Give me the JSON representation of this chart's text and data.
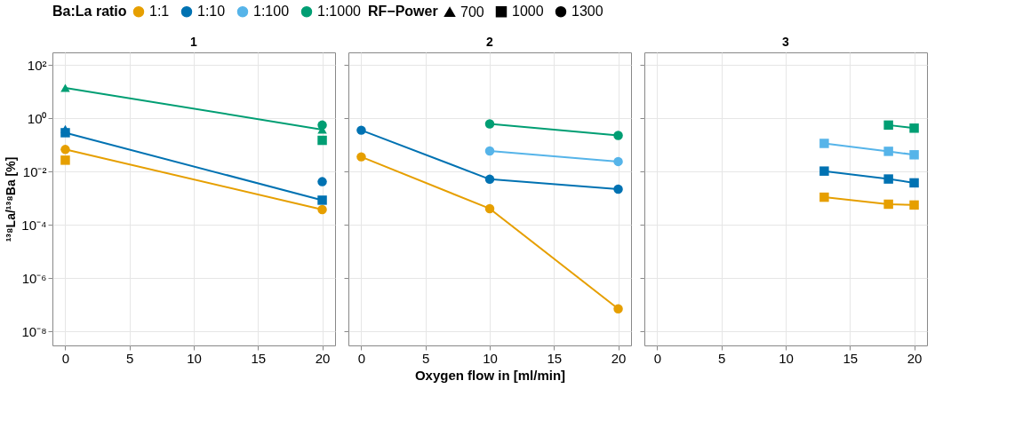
{
  "chart_data": [
    {
      "type": "line",
      "title": "1",
      "ylabel": "¹³⁸La/¹³⁸Ba [%]",
      "grid": true,
      "log": true,
      "marker": [
        "triangle",
        "square",
        "circle"
      ],
      "annotations": [
        "RF−Power",
        "700",
        "1000",
        "1300"
      ],
      "xlim": [
        -1,
        21
      ],
      "xticks": [
        0,
        5,
        10,
        15,
        20
      ],
      "ylim": [
        3e-09,
        300
      ],
      "yticks": [
        {
          "value": 1e-08,
          "label": "10⁻⁸"
        },
        {
          "value": 1e-06,
          "label": "10⁻⁶"
        },
        {
          "value": 0.0001,
          "label": "10⁻⁴"
        },
        {
          "value": 0.01,
          "label": "10⁻²"
        },
        {
          "value": 1,
          "label": "10⁰"
        },
        {
          "value": 100,
          "label": "10²"
        }
      ],
      "series": [
        {
          "color": "#e69f00",
          "type": "line",
          "marker": "circle",
          "x": [
            0,
            20
          ],
          "values": [
            0.068,
            0.00038
          ]
        },
        {
          "color": "#e69f00",
          "type": "scatter",
          "marker": "square",
          "x": [
            0
          ],
          "values": [
            0.027
          ]
        },
        {
          "color": "#0072b2",
          "type": "line",
          "marker": "square",
          "x": [
            0,
            20
          ],
          "values": [
            0.29,
            0.00085
          ]
        },
        {
          "color": "#0072b2",
          "type": "scatter",
          "marker": "triangle",
          "x": [
            0
          ],
          "values": [
            0.4
          ]
        },
        {
          "color": "#0072b2",
          "type": "scatter",
          "marker": "circle",
          "x": [
            20
          ],
          "values": [
            0.0042
          ]
        },
        {
          "color": "#009e73",
          "type": "line",
          "marker": "triangle",
          "x": [
            0,
            20
          ],
          "values": [
            14,
            0.38
          ]
        },
        {
          "color": "#009e73",
          "type": "scatter",
          "marker": "circle",
          "x": [
            20
          ],
          "values": [
            0.56
          ]
        },
        {
          "color": "#009e73",
          "type": "scatter",
          "marker": "square",
          "x": [
            20
          ],
          "values": [
            0.15
          ]
        }
      ]
    },
    {
      "type": "line",
      "title": "2",
      "xlabel": "Oxygen flow in [ml/min]",
      "legend_title": "Ba:La ratio",
      "legend": "top",
      "grid": true,
      "log": true,
      "tick_labels": "x",
      "xlim": [
        -1,
        21
      ],
      "xticks": [
        0,
        5,
        10,
        15,
        20
      ],
      "ylim": [
        3e-09,
        300
      ],
      "yticks": [
        {
          "value": 1e-08,
          "label": null
        },
        {
          "value": 1e-06,
          "label": null
        },
        {
          "value": 0.0001,
          "label": null
        },
        {
          "value": 0.01,
          "label": null
        },
        {
          "value": 1,
          "label": null
        },
        {
          "value": 100,
          "label": null
        }
      ],
      "series": [
        {
          "name": "1:1",
          "color": "#e69f00",
          "marker": "circle",
          "x": [
            0,
            10,
            20
          ],
          "values": [
            0.036,
            0.00041,
            7.1e-08
          ]
        },
        {
          "name": "1:10",
          "color": "#0072b2",
          "marker": "circle",
          "x": [
            0,
            10,
            20
          ],
          "values": [
            0.36,
            0.0052,
            0.0022
          ]
        },
        {
          "name": "1:100",
          "color": "#56b4e9",
          "marker": "circle",
          "x": [
            10,
            20
          ],
          "values": [
            0.06,
            0.024
          ]
        },
        {
          "name": "1:1000",
          "color": "#009e73",
          "marker": "circle",
          "x": [
            10,
            20
          ],
          "values": [
            0.62,
            0.23
          ]
        }
      ]
    },
    {
      "type": "line",
      "title": "3",
      "grid": true,
      "log": true,
      "tick_labels": "x",
      "xlim": [
        -1,
        21
      ],
      "xticks": [
        0,
        5,
        10,
        15,
        20
      ],
      "ylim": [
        3e-09,
        300
      ],
      "yticks": [
        {
          "value": 1e-08,
          "label": null
        },
        {
          "value": 1e-06,
          "label": null
        },
        {
          "value": 0.0001,
          "label": null
        },
        {
          "value": 0.01,
          "label": null
        },
        {
          "value": 1,
          "label": null
        },
        {
          "value": 100,
          "label": null
        }
      ],
      "series": [
        {
          "color": "#e69f00",
          "marker": "square",
          "x": [
            13,
            18,
            20
          ],
          "values": [
            0.0011,
            0.0006,
            0.00056
          ]
        },
        {
          "color": "#0072b2",
          "marker": "square",
          "x": [
            13,
            18,
            20
          ],
          "values": [
            0.0105,
            0.0053,
            0.0038
          ]
        },
        {
          "color": "#56b4e9",
          "marker": "square",
          "x": [
            13,
            18,
            20
          ],
          "values": [
            0.115,
            0.058,
            0.043
          ]
        },
        {
          "color": "#009e73",
          "marker": "square",
          "x": [
            18,
            20
          ],
          "values": [
            0.56,
            0.43
          ]
        }
      ]
    }
  ]
}
